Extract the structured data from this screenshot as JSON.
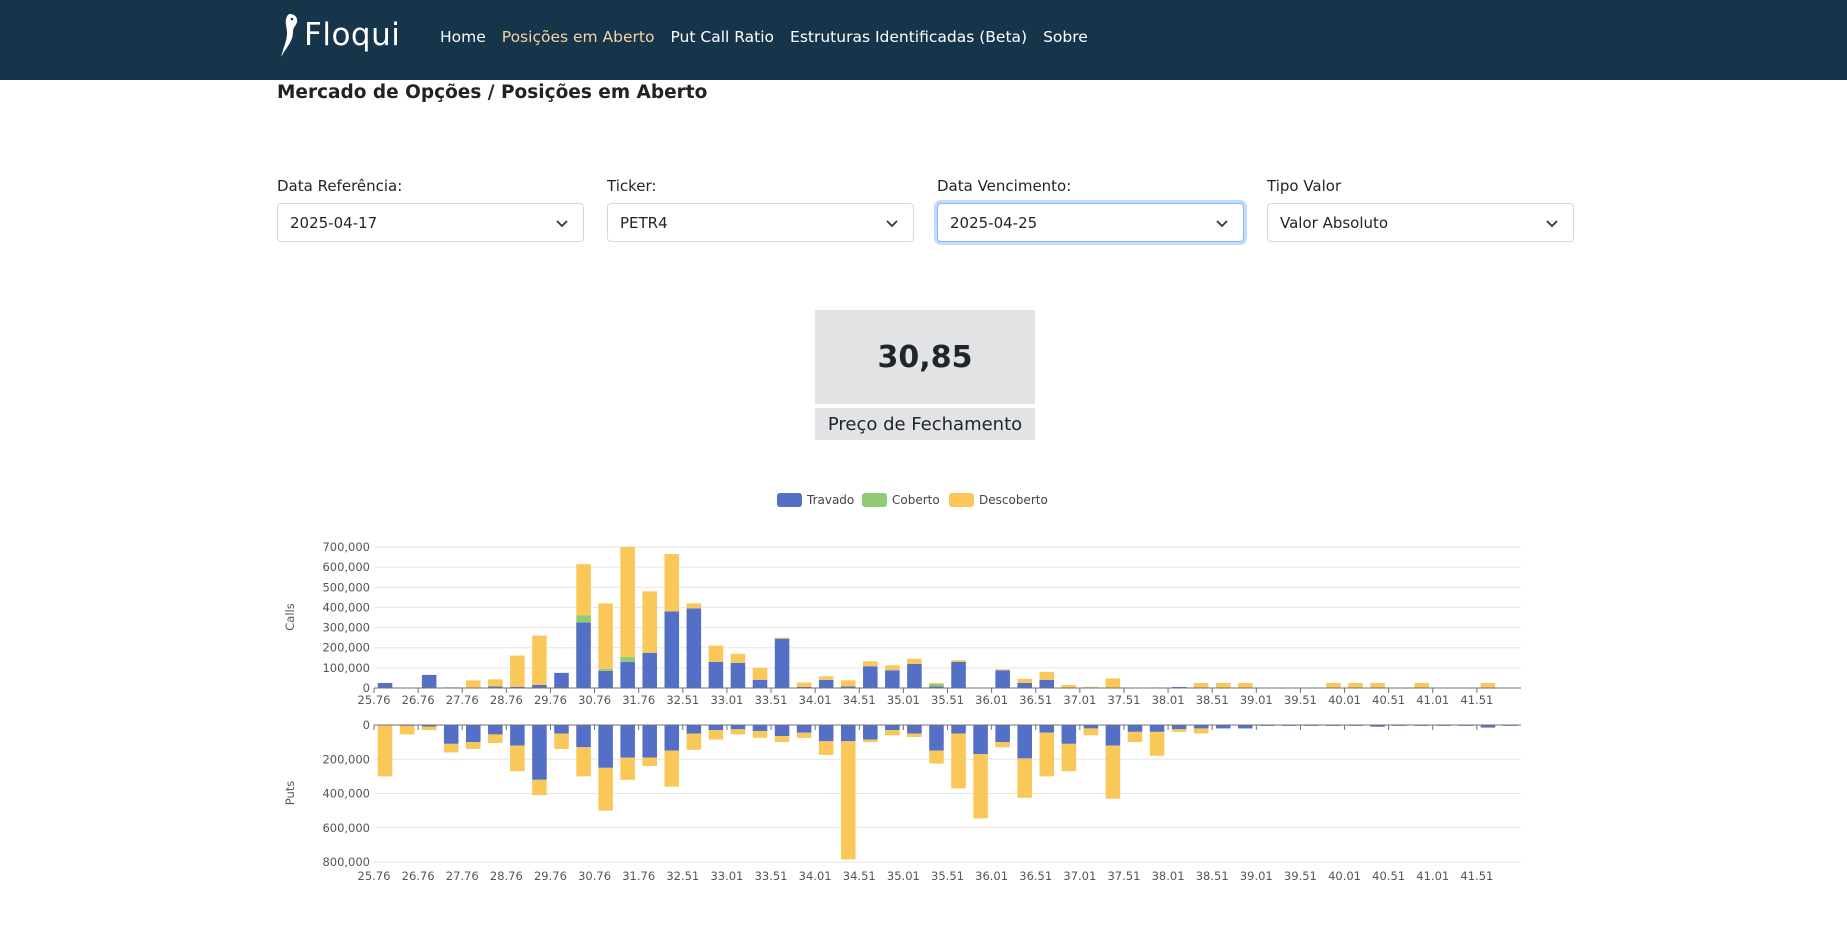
{
  "brand": {
    "name": "Floqui"
  },
  "nav": [
    {
      "label": "Home",
      "active": false
    },
    {
      "label": "Posições em Aberto",
      "active": true
    },
    {
      "label": "Put Call Ratio",
      "active": false
    },
    {
      "label": "Estruturas Identificadas (Beta)",
      "active": false
    },
    {
      "label": "Sobre",
      "active": false
    }
  ],
  "breadcrumb": "Mercado de Opções / Posições em Aberto",
  "filters": [
    {
      "label": "Data Referência:",
      "value": "2025-04-17"
    },
    {
      "label": "Ticker:",
      "value": "PETR4"
    },
    {
      "label": "Data Vencimento:",
      "value": "2025-04-25"
    },
    {
      "label": "Tipo Valor",
      "value": "Valor Absoluto"
    }
  ],
  "price": {
    "value": "30,85",
    "label": "Preço de Fechamento"
  },
  "colors": {
    "navbar": "#16344a",
    "travado": "#5470c6",
    "coberto": "#91cc75",
    "descoberto": "#fac858"
  },
  "chart_data": [
    {
      "type": "bar",
      "stacked": true,
      "ylabel": "Calls",
      "ylim": [
        0,
        700000
      ],
      "yticks": [
        0,
        100000,
        200000,
        300000,
        400000,
        500000,
        600000,
        700000
      ],
      "ytick_labels": [
        "0",
        "100,000",
        "200,000",
        "300,000",
        "400,000",
        "500,000",
        "600,000",
        "700,000"
      ],
      "legend": {
        "position": "top-center",
        "entries": [
          "Travado",
          "Coberto",
          "Descoberto"
        ]
      },
      "x": [
        25.76,
        26.26,
        26.76,
        27.26,
        27.76,
        28.26,
        28.76,
        29.26,
        29.76,
        30.26,
        30.76,
        31.26,
        31.76,
        32.26,
        32.51,
        32.76,
        33.01,
        33.26,
        33.51,
        33.76,
        34.01,
        34.26,
        34.51,
        34.76,
        35.01,
        35.26,
        35.51,
        35.76,
        36.01,
        36.26,
        36.51,
        36.76,
        37.01,
        37.26,
        37.51,
        37.76,
        38.01,
        38.26,
        38.51,
        38.76,
        39.01,
        39.26,
        39.51,
        39.76,
        40.01,
        40.26,
        40.51,
        40.76,
        41.01,
        41.26,
        41.51,
        41.76
      ],
      "xtick_labels": [
        "25.76",
        "26.76",
        "27.76",
        "28.76",
        "29.76",
        "30.76",
        "31.76",
        "32.51",
        "33.01",
        "33.51",
        "34.01",
        "34.51",
        "35.01",
        "35.51",
        "36.01",
        "36.51",
        "37.01",
        "37.51",
        "38.01",
        "38.51",
        "39.01",
        "39.51",
        "40.01",
        "40.51",
        "41.01",
        "41.51"
      ],
      "series": [
        {
          "name": "Travado",
          "values": [
            25000,
            0,
            65000,
            3000,
            3000,
            8000,
            6000,
            15000,
            75000,
            325000,
            85000,
            130000,
            175000,
            380000,
            395000,
            130000,
            125000,
            40000,
            245000,
            5000,
            40000,
            8000,
            108000,
            88000,
            120000,
            8000,
            130000,
            0,
            88000,
            25000,
            40000,
            0,
            3000,
            0,
            0,
            0,
            5000,
            0,
            0,
            0,
            0,
            0,
            0,
            0,
            0,
            0,
            0,
            0,
            0,
            0,
            0,
            0
          ]
        },
        {
          "name": "Coberto",
          "values": [
            0,
            0,
            0,
            0,
            0,
            0,
            0,
            0,
            0,
            35000,
            10000,
            25000,
            0,
            0,
            0,
            0,
            0,
            0,
            0,
            0,
            0,
            0,
            0,
            0,
            0,
            12000,
            0,
            0,
            0,
            0,
            0,
            0,
            0,
            0,
            0,
            0,
            0,
            0,
            0,
            0,
            0,
            0,
            0,
            0,
            0,
            0,
            0,
            0,
            0,
            0,
            0,
            0
          ]
        },
        {
          "name": "Descoberto",
          "values": [
            0,
            0,
            0,
            0,
            35000,
            35000,
            155000,
            245000,
            0,
            255000,
            325000,
            545000,
            305000,
            285000,
            25000,
            80000,
            45000,
            60000,
            5000,
            22000,
            18000,
            30000,
            25000,
            25000,
            25000,
            5000,
            8000,
            0,
            5000,
            20000,
            40000,
            15000,
            3000,
            48000,
            0,
            3000,
            0,
            25000,
            25000,
            25000,
            0,
            0,
            0,
            25000,
            25000,
            25000,
            0,
            25000,
            0,
            0,
            25000,
            0
          ]
        }
      ]
    },
    {
      "type": "bar",
      "stacked": true,
      "inverted": true,
      "ylabel": "Puts",
      "ylim": [
        0,
        800000
      ],
      "yticks": [
        0,
        200000,
        400000,
        600000,
        800000
      ],
      "ytick_labels": [
        "0",
        "200,000",
        "400,000",
        "600,000",
        "800,000"
      ],
      "x": [
        25.76,
        26.26,
        26.76,
        27.26,
        27.76,
        28.26,
        28.76,
        29.26,
        29.76,
        30.26,
        30.76,
        31.26,
        31.76,
        32.26,
        32.51,
        32.76,
        33.01,
        33.26,
        33.51,
        33.76,
        34.01,
        34.26,
        34.51,
        34.76,
        35.01,
        35.26,
        35.51,
        35.76,
        36.01,
        36.26,
        36.51,
        36.76,
        37.01,
        37.26,
        37.51,
        37.76,
        38.01,
        38.26,
        38.51,
        38.76,
        39.01,
        39.26,
        39.51,
        39.76,
        40.01,
        40.26,
        40.51,
        40.76,
        41.01,
        41.26,
        41.51,
        41.76
      ],
      "xtick_labels": [
        "25.76",
        "26.76",
        "27.76",
        "28.76",
        "29.76",
        "30.76",
        "31.76",
        "32.51",
        "33.01",
        "33.51",
        "34.01",
        "34.51",
        "35.01",
        "35.51",
        "36.01",
        "36.51",
        "37.01",
        "37.51",
        "38.01",
        "38.51",
        "39.01",
        "39.51",
        "40.01",
        "40.51",
        "41.01",
        "41.51"
      ],
      "series": [
        {
          "name": "Travado",
          "values": [
            0,
            5000,
            10000,
            110000,
            100000,
            55000,
            120000,
            320000,
            50000,
            130000,
            250000,
            190000,
            190000,
            150000,
            50000,
            30000,
            25000,
            35000,
            65000,
            45000,
            95000,
            95000,
            85000,
            30000,
            50000,
            150000,
            50000,
            170000,
            100000,
            195000,
            45000,
            110000,
            20000,
            120000,
            40000,
            40000,
            25000,
            20000,
            20000,
            20000,
            5000,
            5000,
            5000,
            5000,
            5000,
            10000,
            5000,
            5000,
            5000,
            5000,
            15000,
            5000
          ]
        },
        {
          "name": "Coberto",
          "values": [
            0,
            0,
            0,
            0,
            0,
            0,
            0,
            0,
            0,
            0,
            0,
            0,
            0,
            0,
            0,
            0,
            0,
            0,
            0,
            0,
            0,
            0,
            0,
            0,
            0,
            0,
            0,
            0,
            0,
            0,
            0,
            0,
            0,
            0,
            0,
            0,
            0,
            0,
            0,
            0,
            0,
            0,
            0,
            0,
            0,
            0,
            0,
            0,
            0,
            0,
            0,
            0
          ]
        },
        {
          "name": "Descoberto",
          "values": [
            300000,
            50000,
            20000,
            50000,
            40000,
            50000,
            150000,
            90000,
            90000,
            170000,
            250000,
            130000,
            50000,
            210000,
            95000,
            55000,
            30000,
            40000,
            35000,
            30000,
            80000,
            690000,
            15000,
            30000,
            20000,
            75000,
            320000,
            375000,
            30000,
            230000,
            255000,
            160000,
            40000,
            310000,
            60000,
            140000,
            15000,
            30000,
            0,
            0,
            0,
            0,
            0,
            0,
            0,
            0,
            0,
            0,
            0,
            0,
            0,
            0
          ]
        }
      ]
    }
  ]
}
